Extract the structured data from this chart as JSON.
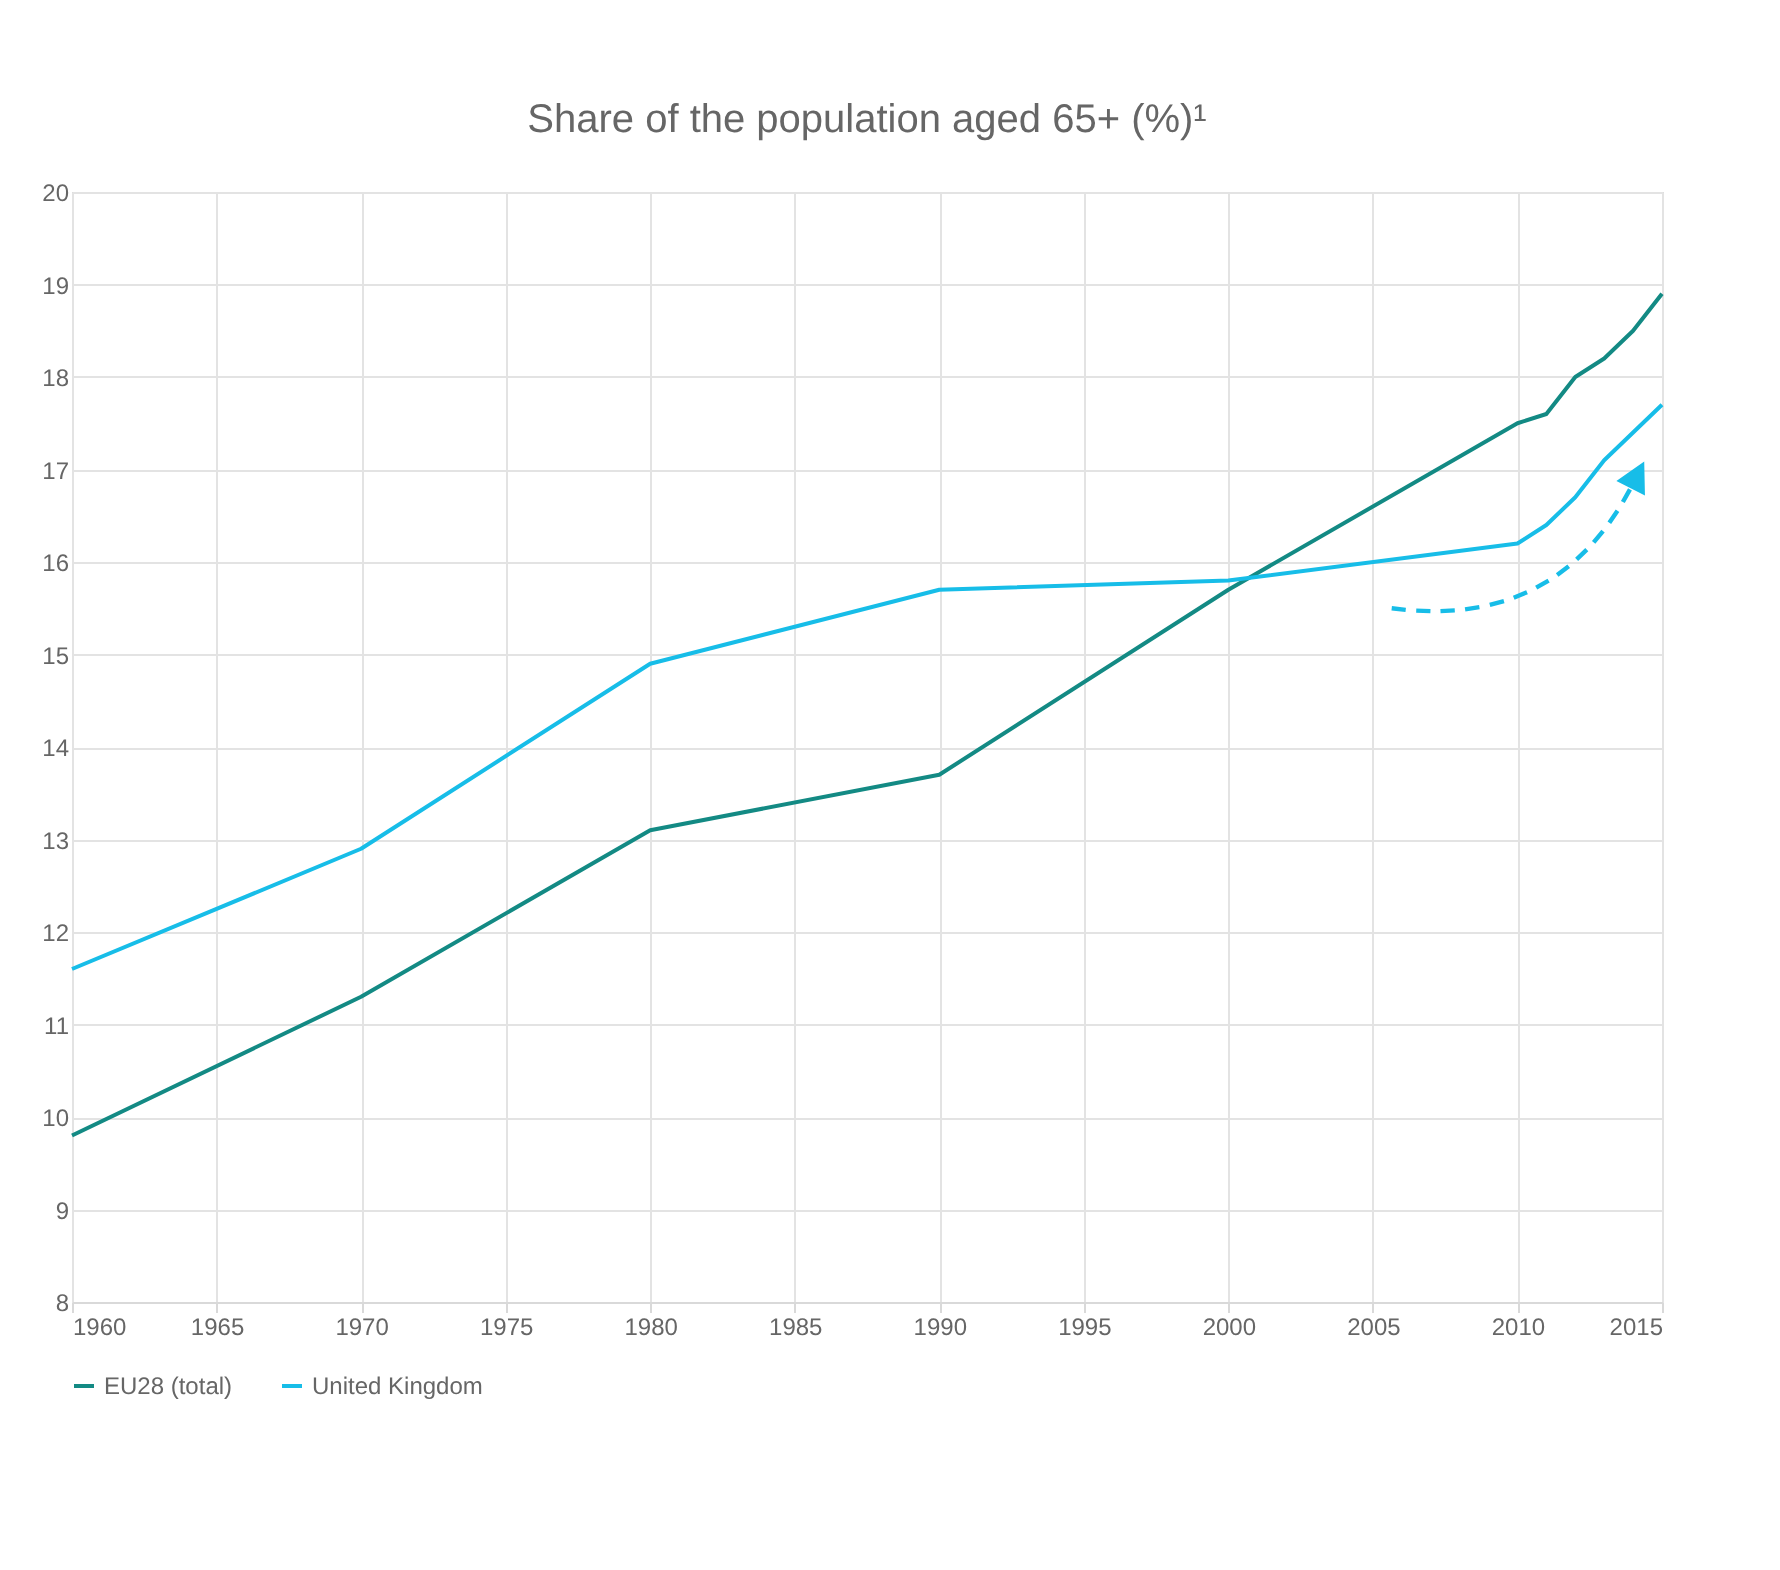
{
  "chart_data": {
    "type": "line",
    "title": "Share of the population aged 65+ (%)¹",
    "x": [
      1960,
      1970,
      1980,
      1990,
      2000,
      2010,
      2011,
      2012,
      2013,
      2014,
      2015
    ],
    "series": [
      {
        "name": "EU28 (total)",
        "color": "#138a84",
        "values": [
          9.8,
          11.3,
          13.1,
          13.7,
          15.7,
          17.5,
          17.6,
          18.0,
          18.2,
          18.5,
          18.9
        ]
      },
      {
        "name": "United Kingdom",
        "color": "#17bde8",
        "values": [
          11.6,
          12.9,
          14.9,
          15.7,
          15.8,
          16.2,
          16.4,
          16.7,
          17.1,
          17.4,
          17.7
        ]
      }
    ],
    "xlim": [
      1960,
      2015
    ],
    "xticks": [
      1960,
      1965,
      1970,
      1975,
      1980,
      1985,
      1990,
      1995,
      2000,
      2005,
      2010,
      2015
    ],
    "ylim": [
      8,
      20
    ],
    "yticks": [
      8,
      9,
      10,
      11,
      12,
      13,
      14,
      15,
      16,
      17,
      18,
      19,
      20
    ],
    "grid": true,
    "legend": "bottom",
    "line_style": "solid",
    "marker": "none"
  }
}
